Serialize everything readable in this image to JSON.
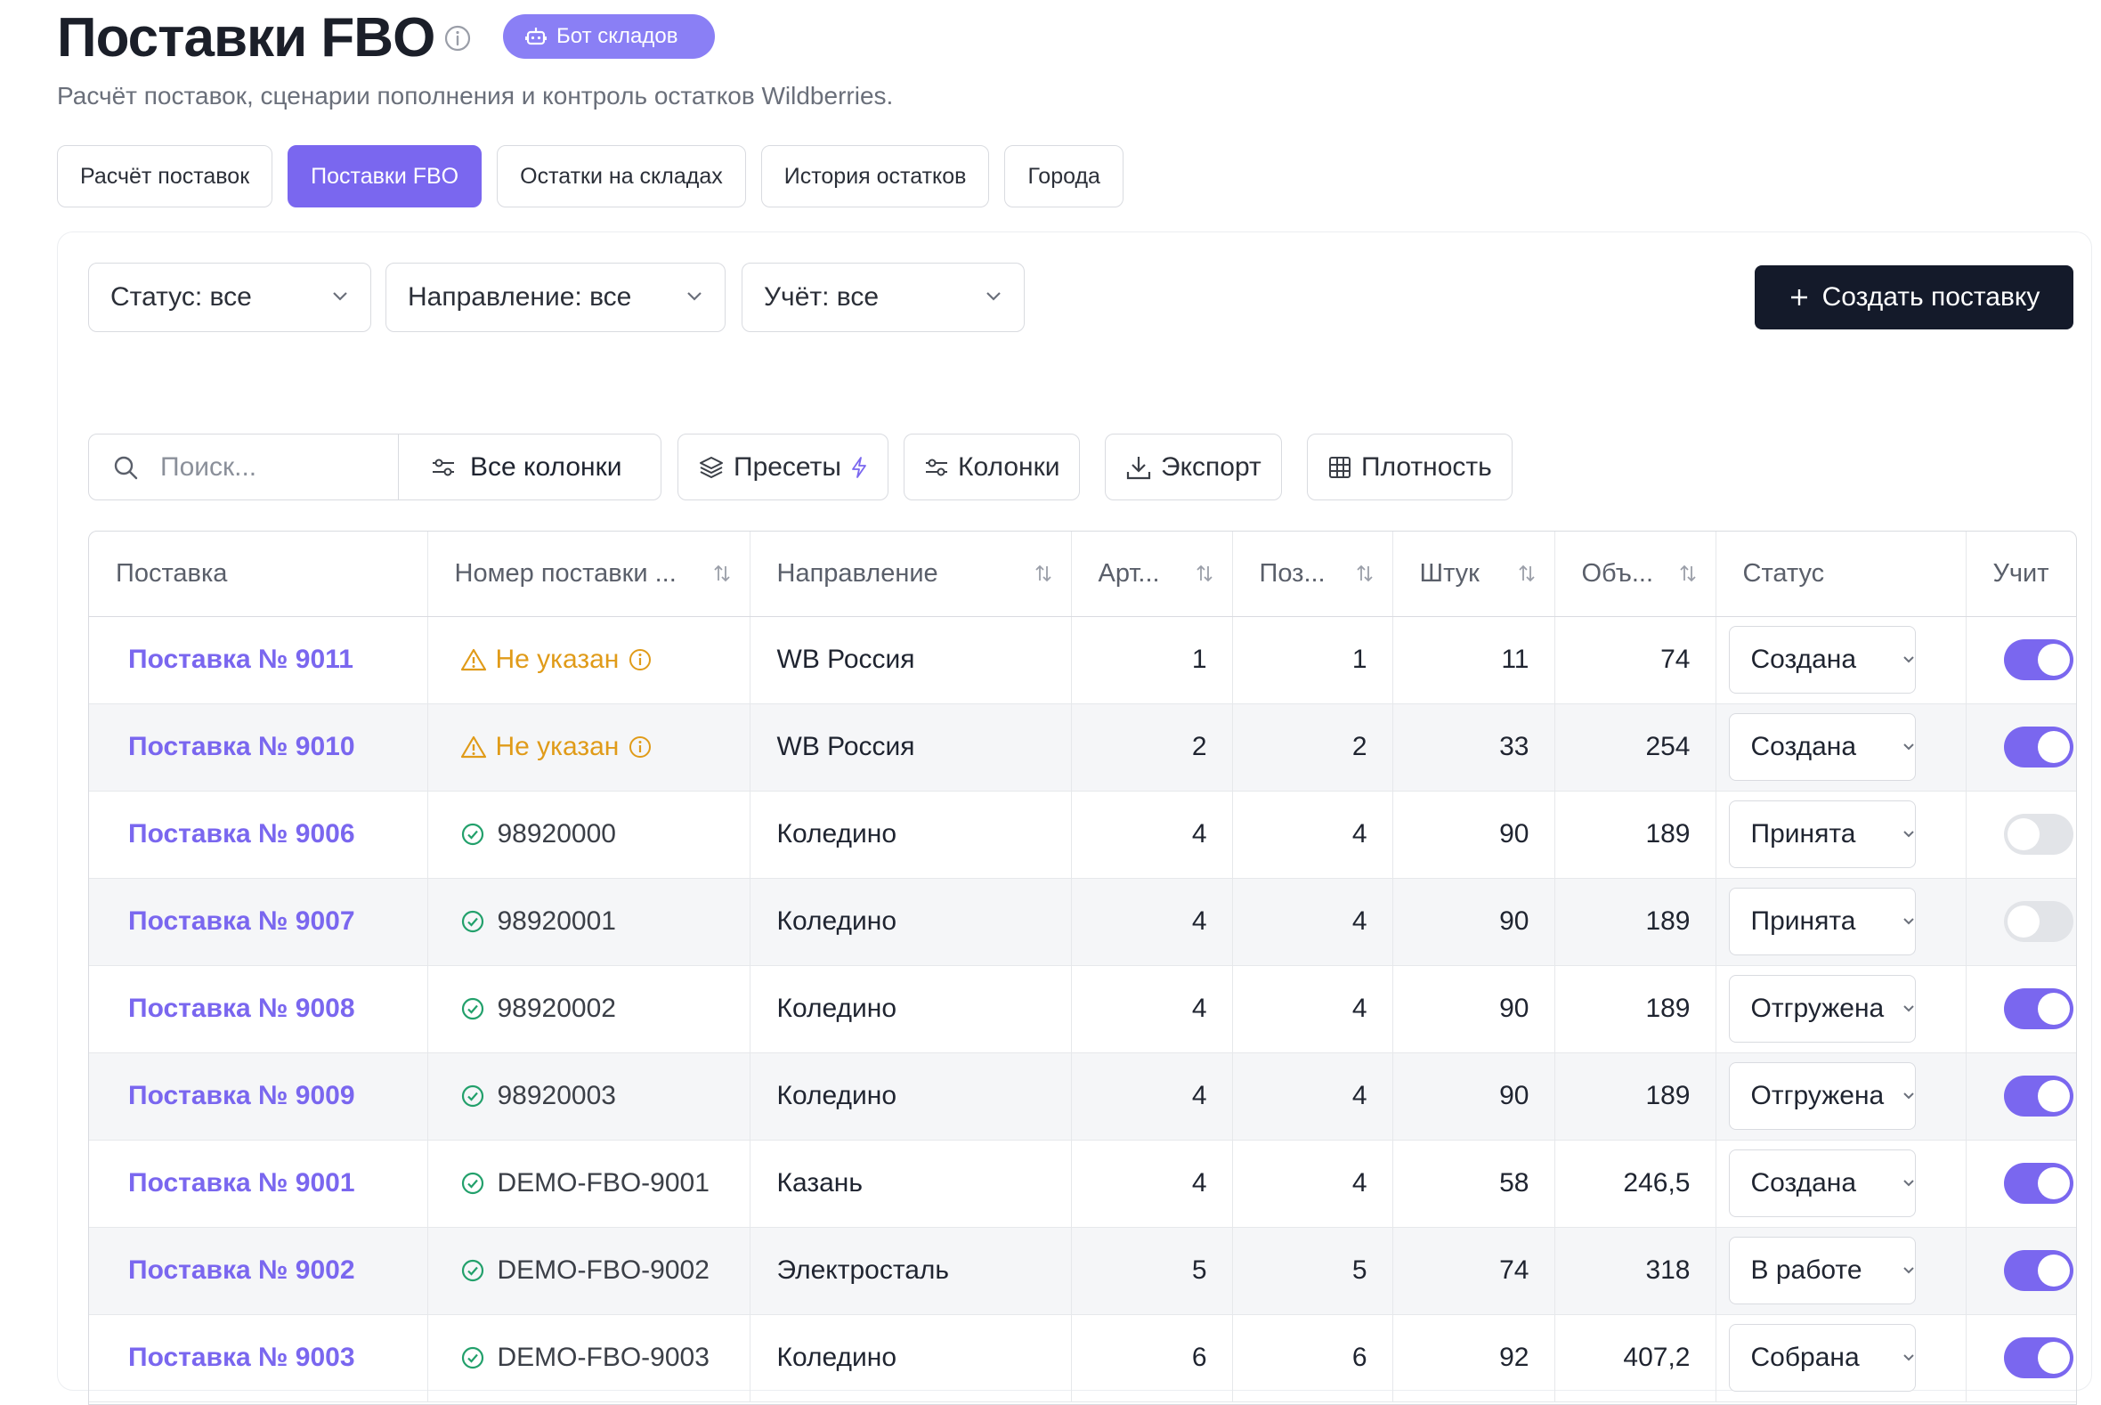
{
  "header": {
    "title": "Поставки FBO",
    "bot_button": "Бот складов",
    "subtitle": "Расчёт поставок, сценарии пополнения и контроль остатков Wildberries."
  },
  "tabs": [
    {
      "label": "Расчёт поставок",
      "active": false
    },
    {
      "label": "Поставки FBO",
      "active": true
    },
    {
      "label": "Остатки на складах",
      "active": false
    },
    {
      "label": "История остатков",
      "active": false
    },
    {
      "label": "Города",
      "active": false
    }
  ],
  "filters": {
    "status": "Статус: все",
    "direction": "Направление: все",
    "accounting": "Учёт: все"
  },
  "create_button": "Создать поставку",
  "toolbar": {
    "search_placeholder": "Поиск...",
    "all_columns": "Все колонки",
    "presets": "Пресеты",
    "columns": "Колонки",
    "export": "Экспорт",
    "density": "Плотность"
  },
  "table": {
    "headers": [
      "Поставка",
      "Номер поставки ...",
      "Направление",
      "Арт...",
      "Поз...",
      "Штук",
      "Объ...",
      "Статус",
      "Учит"
    ],
    "rows": [
      {
        "name": "Поставка № 9011",
        "number": "Не указан",
        "number_missing": true,
        "direction": "WB Россия",
        "art": "1",
        "pos": "1",
        "qty": "11",
        "vol": "74",
        "status": "Создана",
        "toggle": true
      },
      {
        "name": "Поставка № 9010",
        "number": "Не указан",
        "number_missing": true,
        "direction": "WB Россия",
        "art": "2",
        "pos": "2",
        "qty": "33",
        "vol": "254",
        "status": "Создана",
        "toggle": true
      },
      {
        "name": "Поставка № 9006",
        "number": "98920000",
        "number_missing": false,
        "direction": "Коледино",
        "art": "4",
        "pos": "4",
        "qty": "90",
        "vol": "189",
        "status": "Принята",
        "toggle": false
      },
      {
        "name": "Поставка № 9007",
        "number": "98920001",
        "number_missing": false,
        "direction": "Коледино",
        "art": "4",
        "pos": "4",
        "qty": "90",
        "vol": "189",
        "status": "Принята",
        "toggle": false
      },
      {
        "name": "Поставка № 9008",
        "number": "98920002",
        "number_missing": false,
        "direction": "Коледино",
        "art": "4",
        "pos": "4",
        "qty": "90",
        "vol": "189",
        "status": "Отгружена",
        "toggle": true
      },
      {
        "name": "Поставка № 9009",
        "number": "98920003",
        "number_missing": false,
        "direction": "Коледино",
        "art": "4",
        "pos": "4",
        "qty": "90",
        "vol": "189",
        "status": "Отгружена",
        "toggle": true
      },
      {
        "name": "Поставка № 9001",
        "number": "DEMO-FBO-9001",
        "number_missing": false,
        "direction": "Казань",
        "art": "4",
        "pos": "4",
        "qty": "58",
        "vol": "246,5",
        "status": "Создана",
        "toggle": true
      },
      {
        "name": "Поставка № 9002",
        "number": "DEMO-FBO-9002",
        "number_missing": false,
        "direction": "Электросталь",
        "art": "5",
        "pos": "5",
        "qty": "74",
        "vol": "318",
        "status": "В работе",
        "toggle": true
      },
      {
        "name": "Поставка № 9003",
        "number": "DEMO-FBO-9003",
        "number_missing": false,
        "direction": "Коледино",
        "art": "6",
        "pos": "6",
        "qty": "92",
        "vol": "407,2",
        "status": "Собрана",
        "toggle": true
      }
    ]
  },
  "colors": {
    "accent": "#7a67ef",
    "warning": "#e09b19",
    "success": "#22a06b",
    "dark_button": "#141a2a"
  }
}
